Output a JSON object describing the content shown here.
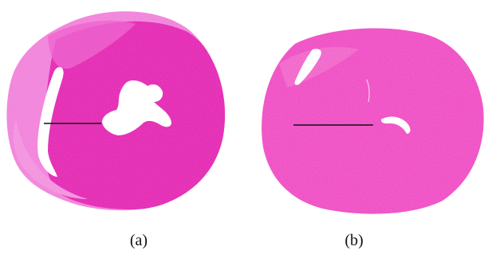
{
  "figure": {
    "panels": [
      {
        "id": "a",
        "caption": "(a)",
        "stain_color": "#e63fc8",
        "dark_region_color": "#e21aae",
        "light_region_color": "#f079d8"
      },
      {
        "id": "b",
        "caption": "(b)",
        "stain_color": "#ee3fbf"
      }
    ]
  }
}
